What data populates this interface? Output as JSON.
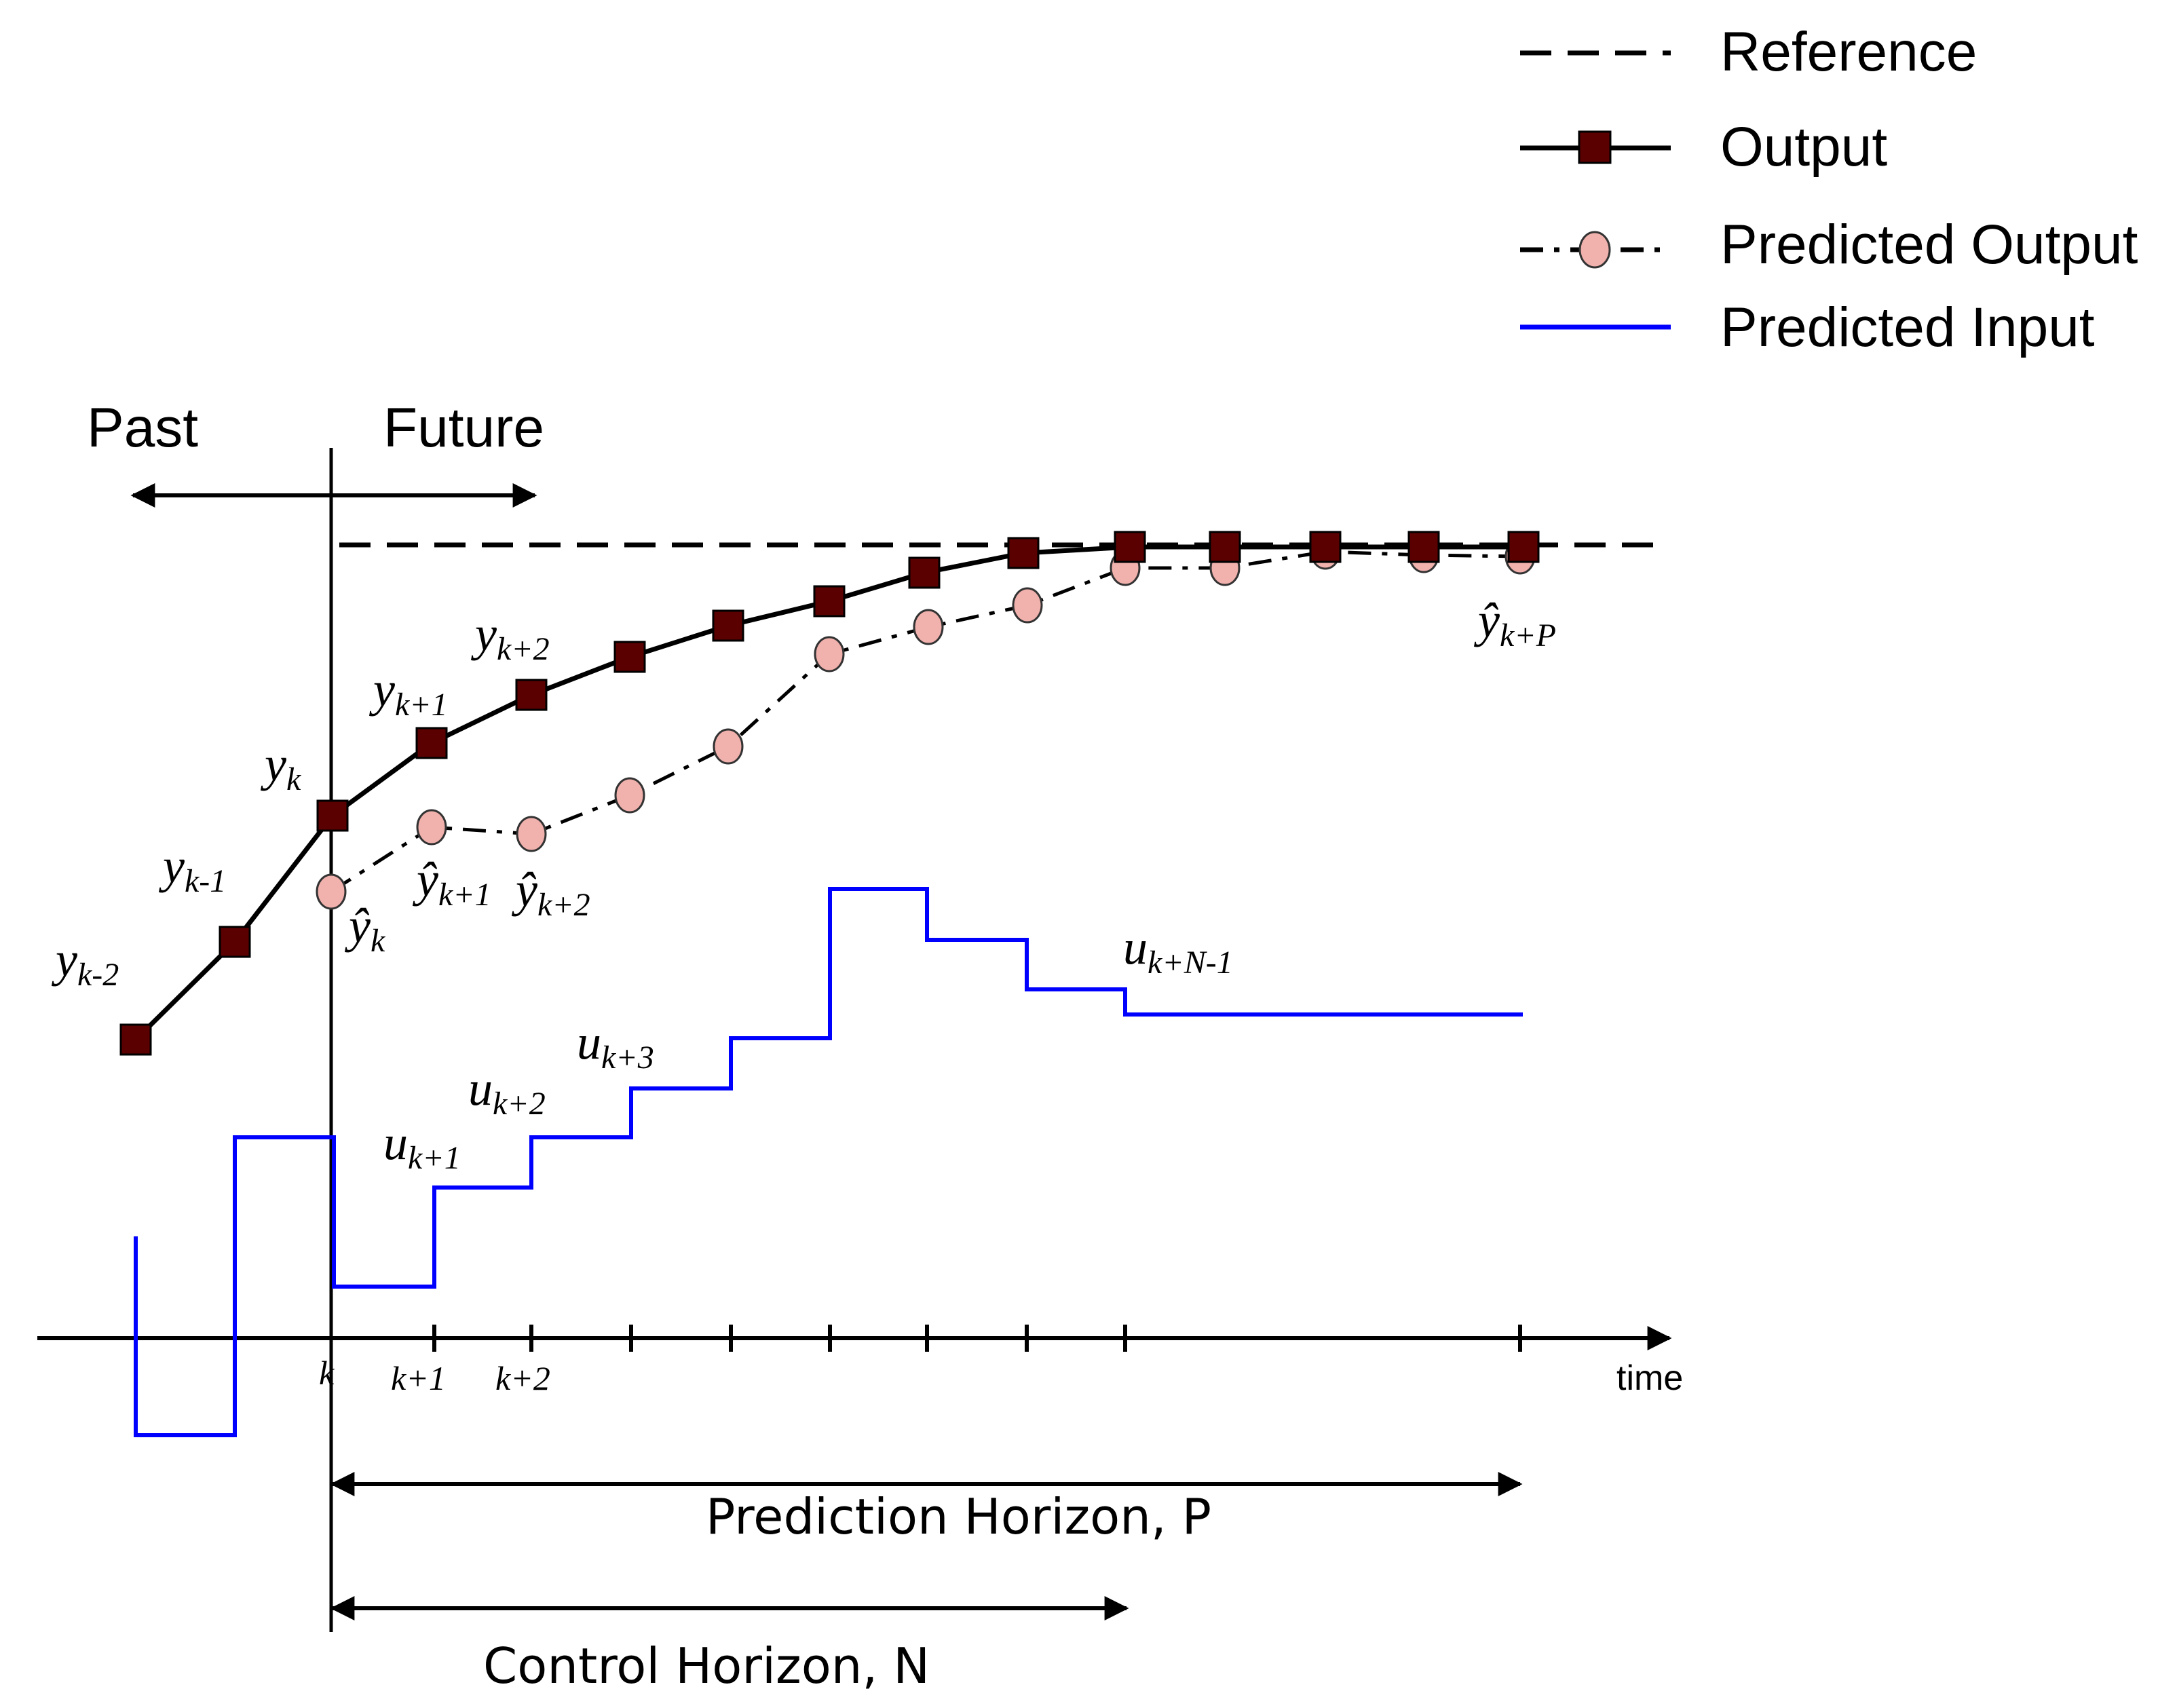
{
  "legend": [
    {
      "label": "Reference",
      "style": "dashed",
      "color": "#000000"
    },
    {
      "label": "Output",
      "style": "solid-square",
      "color": "#000000",
      "marker_color": "#5a0000"
    },
    {
      "label": "Predicted Output",
      "style": "dash-dot-circle",
      "color": "#000000",
      "marker_color": "#f1b1ad"
    },
    {
      "label": "Predicted Input",
      "style": "solid",
      "color": "#0000ff"
    }
  ],
  "regions": {
    "past": "Past",
    "future": "Future"
  },
  "axis": {
    "label": "time"
  },
  "ticks": [
    "k",
    "k+1",
    "k+2"
  ],
  "horizons": {
    "prediction": "Prediction Horizon, P",
    "control": "Control Horizon, N"
  },
  "labels": {
    "y_km2": {
      "base": "y",
      "sub": "k-2"
    },
    "y_km1": {
      "base": "y",
      "sub": "k-1"
    },
    "y_k": {
      "base": "y",
      "sub": "k"
    },
    "y_kp1": {
      "base": "y",
      "sub": "k+1"
    },
    "y_kp2": {
      "base": "y",
      "sub": "k+2"
    },
    "yhat_k": {
      "base": "ŷ",
      "sub": "k"
    },
    "yhat_kp1": {
      "base": "ŷ",
      "sub": "k+1"
    },
    "yhat_kp2": {
      "base": "ŷ",
      "sub": "k+2"
    },
    "yhat_kpP": {
      "base": "ŷ",
      "sub": "k+P"
    },
    "u_kp1": {
      "base": "u",
      "sub": "k+1"
    },
    "u_kp2": {
      "base": "u",
      "sub": "k+2"
    },
    "u_kp3": {
      "base": "u",
      "sub": "k+3"
    },
    "u_kpNm1": {
      "base": "u",
      "sub": "k+N-1"
    }
  },
  "colors": {
    "output_marker": "#5a0000",
    "predicted_marker": "#f1b1ad",
    "input_line": "#0000ff"
  }
}
